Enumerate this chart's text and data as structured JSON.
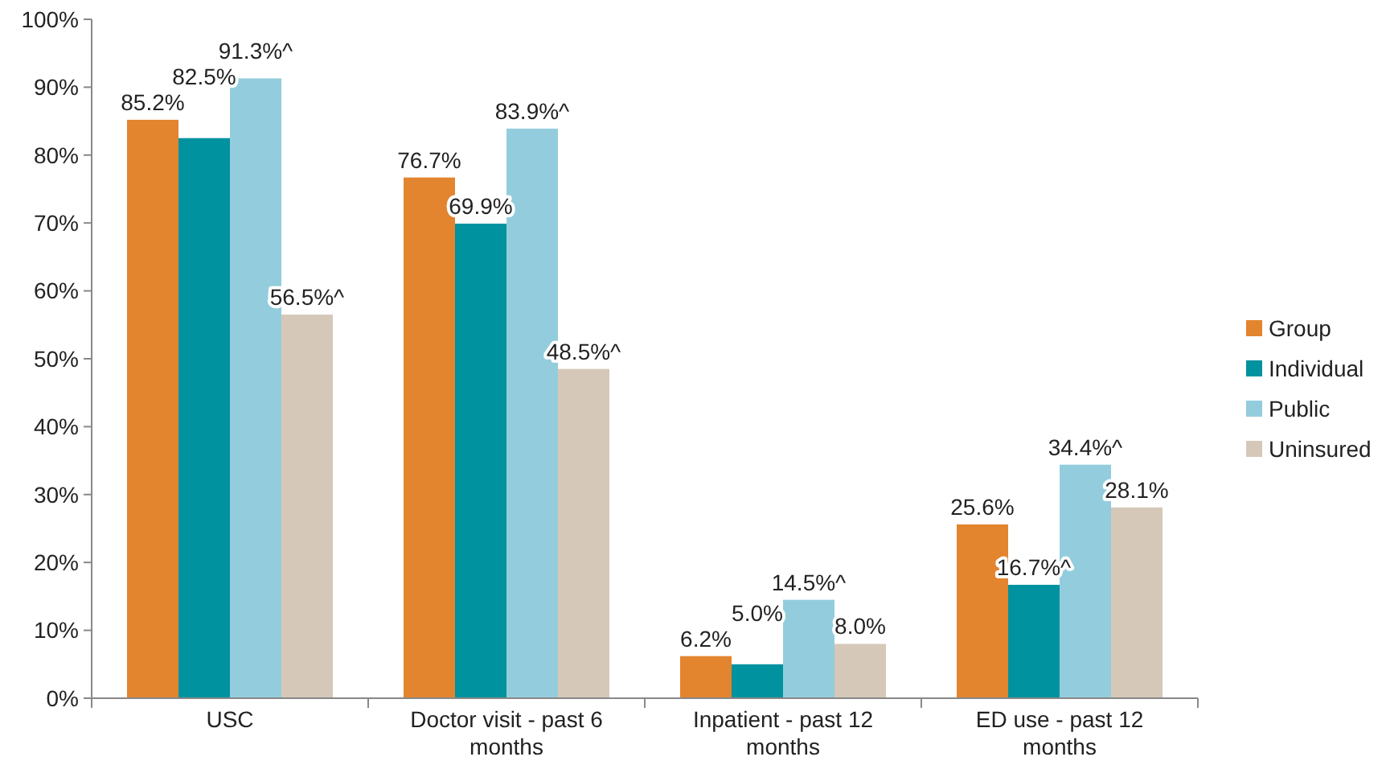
{
  "chart_data": {
    "type": "bar",
    "categories": [
      "USC",
      "Doctor visit - past 6 months",
      "Inpatient - past 12 months",
      "ED use - past 12 months"
    ],
    "series": [
      {
        "name": "Group",
        "color": "#e3842f",
        "values": [
          85.2,
          76.7,
          6.2,
          25.6
        ],
        "value_labels": [
          "85.2%",
          "76.7%",
          "6.2%",
          "25.6%"
        ]
      },
      {
        "name": "Individual",
        "color": "#00929f",
        "values": [
          82.5,
          69.9,
          5.0,
          16.7
        ],
        "value_labels": [
          "82.5%",
          "69.9%",
          "5.0%",
          "16.7%^"
        ]
      },
      {
        "name": "Public",
        "color": "#93cddd",
        "values": [
          91.3,
          83.9,
          14.5,
          34.4
        ],
        "value_labels": [
          "91.3%^",
          "83.9%^",
          "14.5%^",
          "34.4%^"
        ]
      },
      {
        "name": "Uninsured",
        "color": "#d5c8b8",
        "values": [
          56.5,
          48.5,
          8.0,
          28.1
        ],
        "value_labels": [
          "56.5%^",
          "48.5%^",
          "8.0%",
          "28.1%"
        ]
      }
    ],
    "ylim": [
      0,
      100
    ],
    "yticks": [
      {
        "value": 0,
        "label": "0%"
      },
      {
        "value": 10,
        "label": "10%"
      },
      {
        "value": 20,
        "label": "20%"
      },
      {
        "value": 30,
        "label": "30%"
      },
      {
        "value": 40,
        "label": "40%"
      },
      {
        "value": 50,
        "label": "50%"
      },
      {
        "value": 60,
        "label": "60%"
      },
      {
        "value": 70,
        "label": "70%"
      },
      {
        "value": 80,
        "label": "80%"
      },
      {
        "value": 90,
        "label": "90%"
      },
      {
        "value": 100,
        "label": "100%"
      }
    ],
    "grid": false,
    "legend": "right"
  }
}
